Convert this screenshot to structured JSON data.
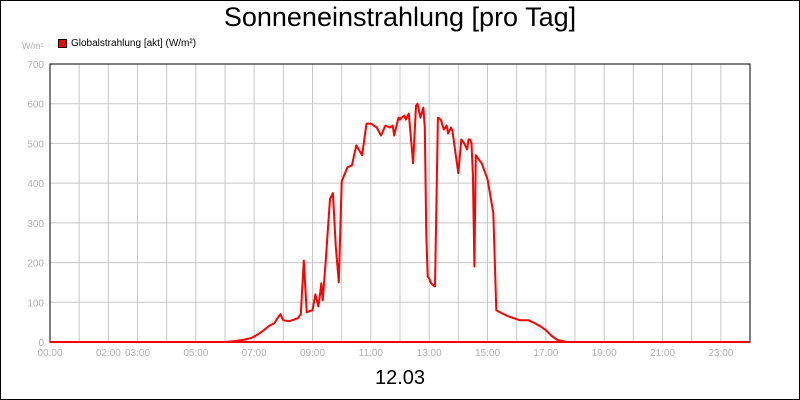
{
  "chart_data": {
    "type": "line",
    "title": "Sonneneinstrahlung [pro Tag]",
    "unit_label": "W/m²",
    "xlabel": "12.03",
    "ylim": [
      0,
      700
    ],
    "xlim": [
      0,
      24
    ],
    "grid": true,
    "legend_position": "top-left",
    "y_ticks": [
      "0",
      "100",
      "200",
      "300",
      "400",
      "500",
      "600",
      "700"
    ],
    "x_ticks": [
      {
        "t": 0,
        "label": "00:00"
      },
      {
        "t": 2,
        "label": "02:00"
      },
      {
        "t": 3,
        "label": "03:00"
      },
      {
        "t": 5,
        "label": "05:00"
      },
      {
        "t": 7,
        "label": "07:00"
      },
      {
        "t": 9,
        "label": "09:00"
      },
      {
        "t": 11,
        "label": "11:00"
      },
      {
        "t": 13,
        "label": "13:00"
      },
      {
        "t": 15,
        "label": "15:00"
      },
      {
        "t": 17,
        "label": "17:00"
      },
      {
        "t": 19,
        "label": "19:00"
      },
      {
        "t": 21,
        "label": "21:00"
      },
      {
        "t": 23,
        "label": "23:00"
      }
    ],
    "series": [
      {
        "name": "Globalstrahlung [akt] (W/m²)",
        "color": "#ff0000",
        "x": [
          0,
          6.0,
          6.3,
          6.6,
          6.9,
          7.1,
          7.3,
          7.5,
          7.7,
          7.8,
          7.9,
          8.0,
          8.2,
          8.3,
          8.5,
          8.6,
          8.7,
          8.8,
          9.0,
          9.1,
          9.2,
          9.25,
          9.3,
          9.35,
          9.45,
          9.5,
          9.6,
          9.7,
          9.8,
          9.9,
          10.0,
          10.2,
          10.35,
          10.5,
          10.7,
          10.85,
          11.0,
          11.2,
          11.35,
          11.5,
          11.65,
          11.75,
          11.8,
          11.95,
          12.0,
          12.05,
          12.15,
          12.2,
          12.3,
          12.45,
          12.55,
          12.6,
          12.7,
          12.8,
          12.85,
          12.9,
          12.95,
          13.0,
          13.05,
          13.1,
          13.2,
          13.3,
          13.4,
          13.5,
          13.6,
          13.65,
          13.75,
          13.8,
          14.0,
          14.1,
          14.2,
          14.3,
          14.35,
          14.4,
          14.45,
          14.5,
          14.55,
          14.6,
          14.7,
          14.8,
          15.0,
          15.2,
          15.3,
          15.35,
          15.5,
          15.7,
          15.9,
          16.1,
          16.4,
          16.6,
          16.8,
          17.0,
          17.2,
          17.4,
          17.7,
          18.0,
          18.3,
          18.6,
          19.0,
          24.0
        ],
        "values": [
          0,
          0,
          2,
          5,
          10,
          18,
          28,
          40,
          48,
          60,
          70,
          55,
          52,
          55,
          60,
          70,
          205,
          75,
          80,
          120,
          90,
          115,
          148,
          105,
          200,
          255,
          360,
          375,
          240,
          150,
          405,
          440,
          445,
          495,
          470,
          550,
          550,
          540,
          520,
          545,
          540,
          545,
          520,
          565,
          560,
          565,
          570,
          560,
          575,
          450,
          595,
          600,
          565,
          590,
          540,
          270,
          165,
          160,
          150,
          145,
          140,
          565,
          560,
          535,
          545,
          525,
          540,
          530,
          425,
          510,
          500,
          485,
          510,
          510,
          500,
          420,
          190,
          470,
          460,
          450,
          410,
          325,
          80,
          78,
          72,
          65,
          60,
          55,
          55,
          48,
          40,
          30,
          15,
          5,
          0,
          0,
          0,
          0,
          0,
          0
        ]
      }
    ]
  }
}
